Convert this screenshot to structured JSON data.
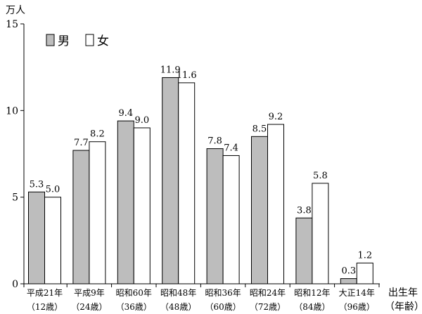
{
  "chart_data": {
    "type": "bar",
    "unit": "万人",
    "ylim": [
      0,
      15
    ],
    "yticks": [
      "0",
      "5",
      "10",
      "15"
    ],
    "categories": [
      {
        "line1": "平成21年",
        "line2": "（12歳）"
      },
      {
        "line1": "平成9年",
        "line2": "（24歳）"
      },
      {
        "line1": "昭和60年",
        "line2": "（36歳）"
      },
      {
        "line1": "昭和48年",
        "line2": "（48歳）"
      },
      {
        "line1": "昭和36年",
        "line2": "（60歳）"
      },
      {
        "line1": "昭和24年",
        "line2": "（72歳）"
      },
      {
        "line1": "昭和12年",
        "line2": "（84歳）"
      },
      {
        "line1": "大正14年",
        "line2": "（96歳）"
      }
    ],
    "series": [
      {
        "name": "男",
        "color": "#bdbdbd",
        "values": [
          5.3,
          7.7,
          9.4,
          11.9,
          7.8,
          8.5,
          3.8,
          0.3
        ]
      },
      {
        "name": "女",
        "color": "#ffffff",
        "values": [
          5.0,
          8.2,
          9.0,
          11.6,
          7.4,
          9.2,
          5.8,
          1.2
        ]
      }
    ],
    "data_labels": [
      [
        "5.3",
        "7.7",
        "9.4",
        "11.9",
        "7.8",
        "8.5",
        "3.8",
        "0.3"
      ],
      [
        "5.0",
        "8.2",
        "9.0",
        "11.6",
        "7.4",
        "9.2",
        "5.8",
        "1.2"
      ]
    ],
    "xlabel": {
      "line1": "出生年",
      "line2": "（年齢）"
    },
    "grid": false,
    "legend_position": "top-left"
  }
}
